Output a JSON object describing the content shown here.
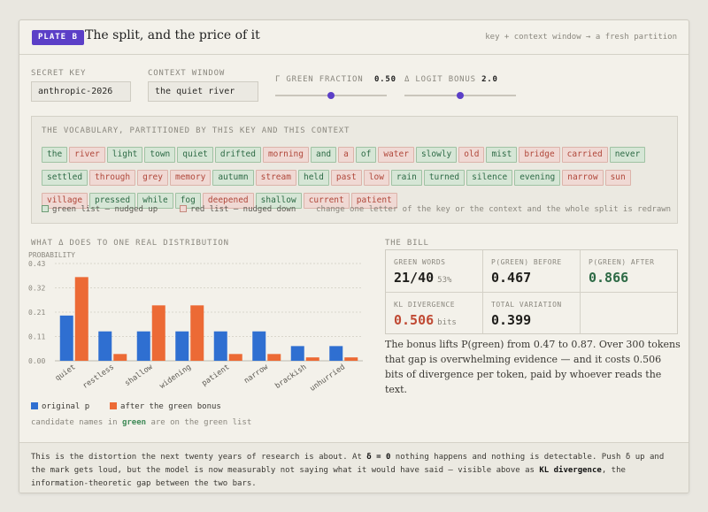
{
  "header": {
    "plate": "PLATE B",
    "title": "The split, and the price of it",
    "note": "key + context window → a fresh partition"
  },
  "controls": {
    "secret_key_label": "SECRET KEY",
    "secret_key_value": "anthropic-2026",
    "context_label": "CONTEXT WINDOW",
    "context_value": "the quiet river",
    "gamma_label": "Γ  GREEN FRACTION",
    "gamma_value": "0.50",
    "gamma_level": 0.5,
    "delta_label": "Δ  LOGIT BONUS",
    "delta_value": "2.0",
    "delta_level": 0.5
  },
  "vocab": {
    "heading": "THE VOCABULARY, PARTITIONED BY THIS KEY AND THIS CONTEXT",
    "tokens": [
      {
        "w": "the",
        "g": true
      },
      {
        "w": "river",
        "g": false
      },
      {
        "w": "light",
        "g": true
      },
      {
        "w": "town",
        "g": true
      },
      {
        "w": "quiet",
        "g": true
      },
      {
        "w": "drifted",
        "g": true
      },
      {
        "w": "morning",
        "g": false
      },
      {
        "w": "and",
        "g": true
      },
      {
        "w": "a",
        "g": false
      },
      {
        "w": "of",
        "g": true
      },
      {
        "w": "water",
        "g": false
      },
      {
        "w": "slowly",
        "g": true
      },
      {
        "w": "old",
        "g": false
      },
      {
        "w": "mist",
        "g": true
      },
      {
        "w": "bridge",
        "g": false
      },
      {
        "w": "carried",
        "g": false
      },
      {
        "w": "never",
        "g": true
      },
      {
        "w": "settled",
        "g": true
      },
      {
        "w": "through",
        "g": false
      },
      {
        "w": "grey",
        "g": false
      },
      {
        "w": "memory",
        "g": false
      },
      {
        "w": "autumn",
        "g": true
      },
      {
        "w": "stream",
        "g": false
      },
      {
        "w": "held",
        "g": true
      },
      {
        "w": "past",
        "g": false
      },
      {
        "w": "low",
        "g": false
      },
      {
        "w": "rain",
        "g": true
      },
      {
        "w": "turned",
        "g": true
      },
      {
        "w": "silence",
        "g": true
      },
      {
        "w": "evening",
        "g": true
      },
      {
        "w": "narrow",
        "g": false
      },
      {
        "w": "sun",
        "g": false
      },
      {
        "w": "village",
        "g": false
      },
      {
        "w": "pressed",
        "g": true
      },
      {
        "w": "while",
        "g": true
      },
      {
        "w": "fog",
        "g": true
      },
      {
        "w": "deepened",
        "g": false
      },
      {
        "w": "shallow",
        "g": true
      },
      {
        "w": "current",
        "g": false
      },
      {
        "w": "patient",
        "g": false
      }
    ],
    "legend_green": "green list — nudged up",
    "legend_red": "red list — nudged down",
    "legend_note": "change one letter of the key or the context and the whole split is redrawn"
  },
  "chart_heading": "WHAT Δ DOES TO ONE REAL DISTRIBUTION",
  "chart_data": {
    "type": "bar",
    "ylabel": "PROBABILITY",
    "ylim": [
      0,
      0.43
    ],
    "yticks": [
      "0.00",
      "0.11",
      "0.21",
      "0.32",
      "0.43"
    ],
    "categories": [
      "quiet",
      "restless",
      "shallow",
      "widening",
      "patient",
      "narrow",
      "brackish",
      "unhurried"
    ],
    "series": [
      {
        "name": "original p",
        "color": "#2f6fd1",
        "values": [
          0.2,
          0.13,
          0.13,
          0.13,
          0.13,
          0.13,
          0.065,
          0.065
        ]
      },
      {
        "name": "after the green bonus",
        "color": "#ec6a35",
        "values": [
          0.37,
          0.03,
          0.245,
          0.245,
          0.03,
          0.03,
          0.015,
          0.015
        ]
      }
    ]
  },
  "chart_note_pre": "candidate names in ",
  "chart_note_green": "green",
  "chart_note_post": " are on the green list",
  "bill": {
    "heading": "THE BILL",
    "green_words_label": "GREEN WORDS",
    "green_words_value": "21/40",
    "green_words_pct": "53%",
    "pg_before_label": "P(GREEN) BEFORE",
    "pg_before_value": "0.467",
    "pg_after_label": "P(GREEN) AFTER",
    "pg_after_value": "0.866",
    "kl_label": "KL DIVERGENCE",
    "kl_value": "0.506",
    "kl_unit": "bits",
    "tv_label": "TOTAL VARIATION",
    "tv_value": "0.399",
    "note": "The bonus lifts P(green) from 0.47 to 0.87. Over 300 tokens that gap is overwhelming evidence — and it costs 0.506 bits of divergence per token, paid by whoever reads the text."
  },
  "footer": {
    "p1": "This is the distortion the next twenty years of research is about. At ",
    "b1": "δ = 0",
    "p2": " nothing happens and nothing is detectable. Push δ up and the mark gets loud, but the model is now measurably not saying what it would have said — visible above as ",
    "b2": "KL divergence",
    "p3": ", the information-theoretic gap between the two bars."
  }
}
